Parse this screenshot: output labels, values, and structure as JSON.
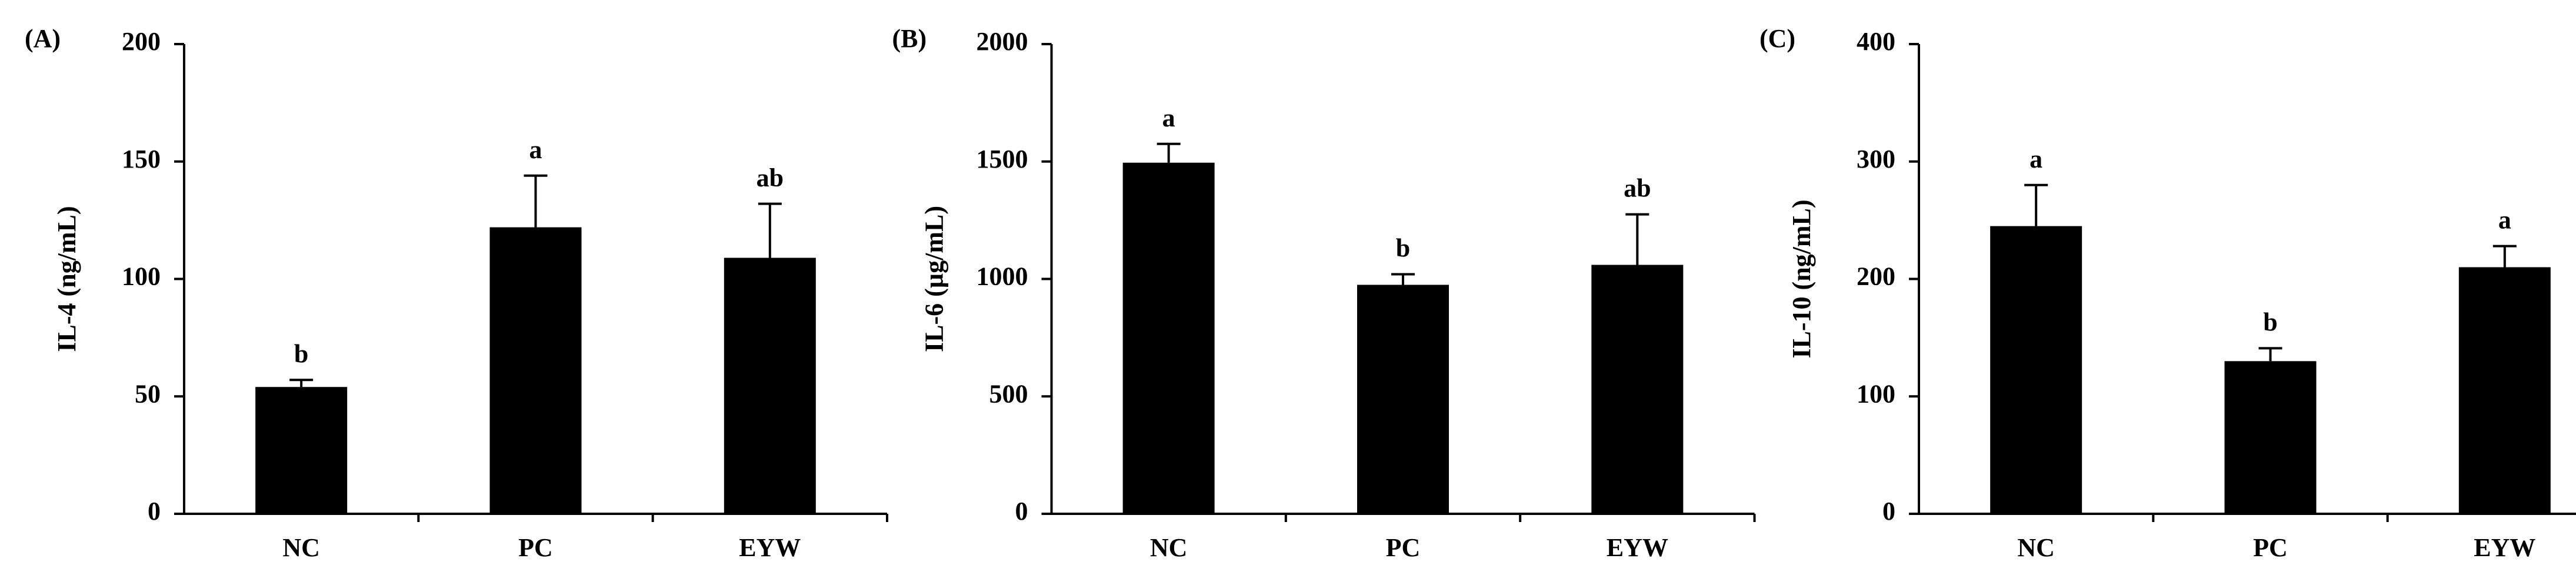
{
  "chart_data": [
    {
      "type": "bar",
      "panel_label": "(A)",
      "y_label": "IL-4 (ng/mL)",
      "categories": [
        "NC",
        "PC",
        "EYW"
      ],
      "values": [
        54,
        122,
        109
      ],
      "errors": [
        3,
        22,
        23
      ],
      "annotations": [
        "b",
        "a",
        "ab"
      ],
      "color": "#000000",
      "ylim": [
        0,
        200
      ],
      "yticks": [
        0,
        50,
        100,
        150,
        200
      ]
    },
    {
      "type": "bar",
      "panel_label": "(B)",
      "y_label": "IL-6 (µg/mL)",
      "categories": [
        "NC",
        "PC",
        "EYW"
      ],
      "values": [
        1495,
        975,
        1060
      ],
      "errors": [
        80,
        45,
        215
      ],
      "annotations": [
        "a",
        "b",
        "ab"
      ],
      "color": "#000000",
      "ylim": [
        0,
        2000
      ],
      "yticks": [
        0,
        500,
        1000,
        1500,
        2000
      ]
    },
    {
      "type": "bar",
      "panel_label": "(C)",
      "y_label": "IL-10 (ng/mL)",
      "categories": [
        "NC",
        "PC",
        "EYW"
      ],
      "values": [
        245,
        130,
        210
      ],
      "errors": [
        35,
        11,
        18
      ],
      "annotations": [
        "a",
        "b",
        "a"
      ],
      "color": "#000000",
      "ylim": [
        0,
        400
      ],
      "yticks": [
        0,
        100,
        200,
        300,
        400
      ]
    }
  ]
}
